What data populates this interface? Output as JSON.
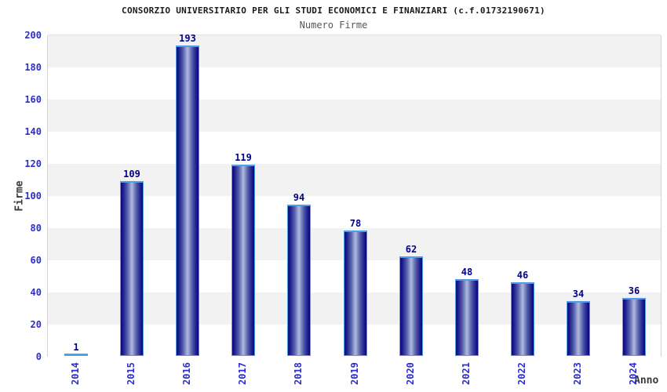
{
  "header": {
    "title": "CONSORZIO UNIVERSITARIO PER GLI STUDI ECONOMICI E FINANZIARI (c.f.01732190671)",
    "subtitle": "Numero Firme"
  },
  "colors": {
    "tick_label": "#2d2dcf",
    "data_label": "#00008b",
    "bar_dark": "#08087c",
    "bar_light_center": "#b2bade",
    "bar_outline": "#4f9fe6",
    "band_gray": "#f2f2f2",
    "band_white": "#ffffff",
    "gridline": "#e4e4e4",
    "plot_border": "#d2d2d2",
    "title_text": "#1b1b1b",
    "subtitle_text": "#575757",
    "axis_title_text": "#3a3a3a"
  },
  "chart_data": {
    "type": "bar",
    "title": "CONSORZIO UNIVERSITARIO PER GLI STUDI ECONOMICI E FINANZIARI (c.f.01732190671)",
    "subtitle": "Numero Firme",
    "xlabel": "Anno",
    "ylabel": "Firme",
    "categories": [
      "2014",
      "2015",
      "2016",
      "2017",
      "2018",
      "2019",
      "2020",
      "2021",
      "2022",
      "2023",
      "2024"
    ],
    "values": [
      1,
      109,
      193,
      119,
      94,
      78,
      62,
      48,
      46,
      34,
      36
    ],
    "ylim": [
      0,
      200
    ],
    "ytick_step": 20,
    "yticks": [
      0,
      20,
      40,
      60,
      80,
      100,
      120,
      140,
      160,
      180,
      200
    ],
    "grid": "alternating-horizontal-bands",
    "legend_position": "none",
    "bar_labels_shown": true,
    "xtick_rotation_degrees": 90
  }
}
